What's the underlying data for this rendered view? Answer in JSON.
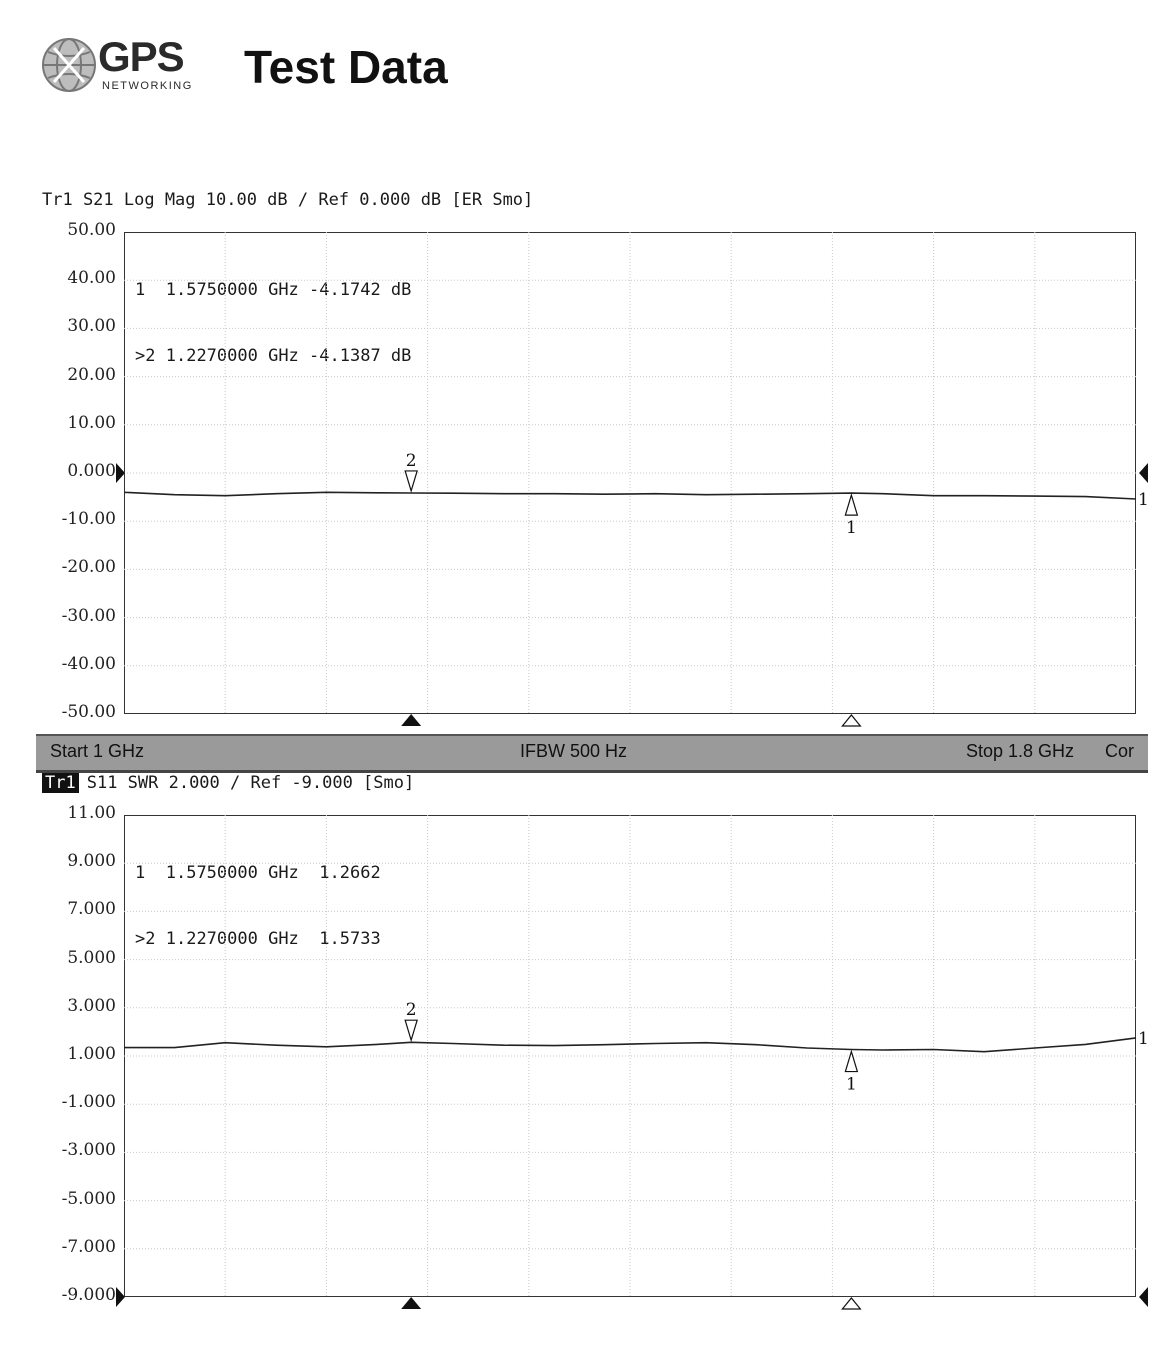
{
  "header": {
    "logo_word": "GPS",
    "logo_sub": "NETWORKING",
    "title": "Test Data"
  },
  "statusbar": {
    "start": "Start 1 GHz",
    "ifbw": "IFBW 500 Hz",
    "stop": "Stop 1.8 GHz",
    "cor": "Cor"
  },
  "chart_data": [
    {
      "type": "line",
      "trace_header": "Tr1 S21 Log Mag 10.00 dB / Ref 0.000 dB [ER Smo]",
      "yticks": [
        "50.00",
        "40.00",
        "30.00",
        "20.00",
        "10.00",
        "0.000",
        "-10.00",
        "-20.00",
        "-30.00",
        "-40.00",
        "-50.00"
      ],
      "ylim": [
        -50,
        50
      ],
      "xlim": [
        1.0,
        1.8
      ],
      "ref_value": 0,
      "grid": true,
      "markers_table": [
        {
          "label": "1",
          "freq": "1.5750000 GHz",
          "value": "-4.1742 dB"
        },
        {
          "label": ">2",
          "freq": "1.2270000 GHz",
          "value": "-4.1387 dB"
        }
      ],
      "markers": [
        {
          "id": "2",
          "x": 1.227,
          "y": -4.1387
        },
        {
          "id": "1",
          "x": 1.575,
          "y": -4.1742
        }
      ],
      "series": [
        {
          "x": [
            1.0,
            1.04,
            1.08,
            1.12,
            1.16,
            1.2,
            1.227,
            1.26,
            1.3,
            1.34,
            1.38,
            1.42,
            1.46,
            1.5,
            1.54,
            1.575,
            1.6,
            1.64,
            1.68,
            1.72,
            1.76,
            1.8
          ],
          "y": [
            -4.0,
            -4.5,
            -4.7,
            -4.3,
            -4.0,
            -4.1,
            -4.14,
            -4.2,
            -4.3,
            -4.3,
            -4.4,
            -4.3,
            -4.5,
            -4.4,
            -4.3,
            -4.17,
            -4.3,
            -4.7,
            -4.7,
            -4.8,
            -4.9,
            -5.4
          ]
        }
      ]
    },
    {
      "type": "line",
      "trace_label": "Tr1",
      "trace_header": "S11 SWR 2.000 / Ref -9.000 [Smo]",
      "yticks": [
        "11.00",
        "9.000",
        "7.000",
        "5.000",
        "3.000",
        "1.000",
        "-1.000",
        "-3.000",
        "-5.000",
        "-7.000",
        "-9.000"
      ],
      "ylim": [
        -9,
        11
      ],
      "xlim": [
        1.0,
        1.8
      ],
      "ref_value": -9,
      "grid": true,
      "markers_table": [
        {
          "label": "1",
          "freq": "1.5750000 GHz",
          "value": "1.2662"
        },
        {
          "label": ">2",
          "freq": "1.2270000 GHz",
          "value": "1.5733"
        }
      ],
      "markers": [
        {
          "id": "2",
          "x": 1.227,
          "y": 1.5733
        },
        {
          "id": "1",
          "x": 1.575,
          "y": 1.2662
        }
      ],
      "series": [
        {
          "x": [
            1.0,
            1.04,
            1.08,
            1.12,
            1.16,
            1.2,
            1.227,
            1.26,
            1.3,
            1.34,
            1.38,
            1.42,
            1.46,
            1.5,
            1.54,
            1.575,
            1.6,
            1.64,
            1.68,
            1.72,
            1.76,
            1.8
          ],
          "y": [
            1.35,
            1.35,
            1.55,
            1.45,
            1.38,
            1.48,
            1.57,
            1.52,
            1.45,
            1.43,
            1.47,
            1.52,
            1.55,
            1.47,
            1.33,
            1.27,
            1.25,
            1.27,
            1.18,
            1.33,
            1.48,
            1.75
          ]
        }
      ]
    }
  ]
}
